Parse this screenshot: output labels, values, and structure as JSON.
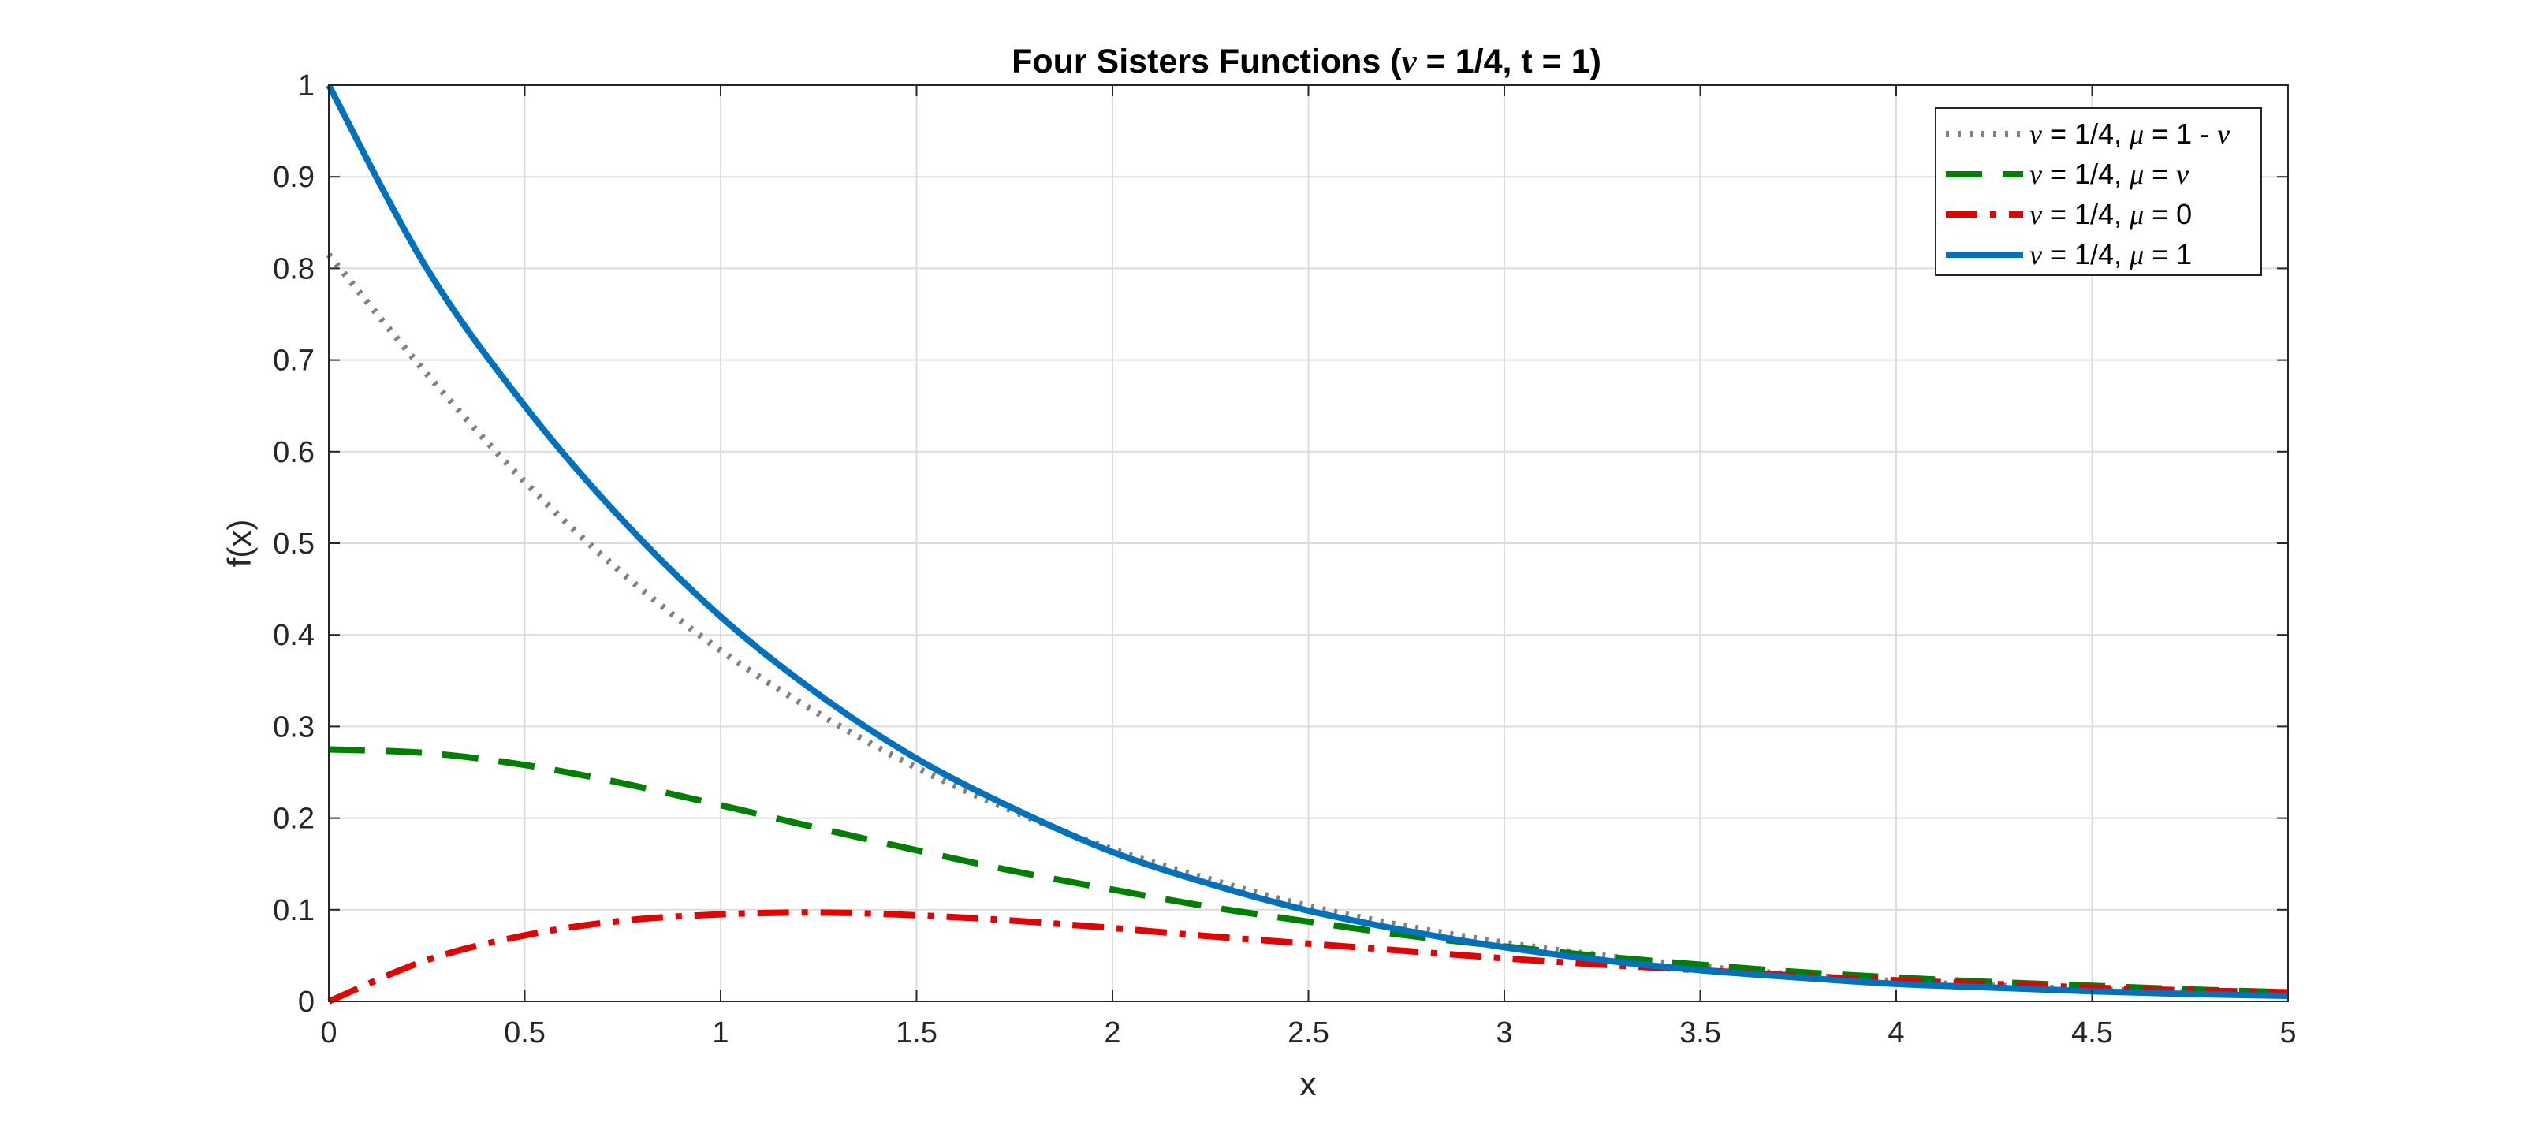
{
  "chart_data": {
    "type": "line",
    "title": {
      "prefix": "Four Sisters Functions (",
      "nu": "ν",
      "suffix": " = 1/4, t = 1)"
    },
    "xlabel": "x",
    "ylabel": "f(x)",
    "xlim": [
      0,
      5
    ],
    "ylim": [
      0,
      1
    ],
    "x_ticks": [
      "0",
      "0.5",
      "1",
      "1.5",
      "2",
      "2.5",
      "3",
      "3.5",
      "4",
      "4.5",
      "5"
    ],
    "y_ticks": [
      "0",
      "0.1",
      "0.2",
      "0.3",
      "0.4",
      "0.5",
      "0.6",
      "0.7",
      "0.8",
      "0.9",
      "1"
    ],
    "grid": true,
    "legend_position": "top-right",
    "x": [
      0,
      0.25,
      0.5,
      0.75,
      1,
      1.25,
      1.5,
      1.75,
      2,
      2.25,
      2.5,
      2.75,
      3,
      3.25,
      3.5,
      3.75,
      4,
      4.25,
      4.5,
      4.75,
      5
    ],
    "series": [
      {
        "legend": {
          "nu": "ν",
          "part1": " = 1/4, ",
          "mu": "μ",
          "part2": " = 1 - ",
          "nu2": "ν"
        },
        "color": "#808080",
        "style": "dotted",
        "values": [
          0.815,
          0.685,
          0.567,
          0.467,
          0.383,
          0.314,
          0.255,
          0.207,
          0.166,
          0.133,
          0.104,
          0.082,
          0.064,
          0.05,
          0.038,
          0.029,
          0.022,
          0.017,
          0.013,
          0.01,
          0.008
        ]
      },
      {
        "legend": {
          "nu": "ν",
          "part1": " = 1/4, ",
          "mu": "μ",
          "part2": " =  ",
          "nu2": "ν"
        },
        "color": "#008000",
        "style": "dashed",
        "values": [
          0.275,
          0.271,
          0.258,
          0.238,
          0.214,
          0.189,
          0.165,
          0.142,
          0.122,
          0.103,
          0.087,
          0.072,
          0.06,
          0.049,
          0.04,
          0.032,
          0.026,
          0.021,
          0.017,
          0.013,
          0.01
        ]
      },
      {
        "legend": {
          "nu": "ν",
          "part1": " = 1/4, ",
          "mu": "μ",
          "part2": " = 0",
          "nu2": ""
        },
        "color": "#e60000",
        "style": "dashdot",
        "values": [
          0.0,
          0.045,
          0.072,
          0.088,
          0.095,
          0.097,
          0.094,
          0.088,
          0.08,
          0.071,
          0.063,
          0.055,
          0.047,
          0.04,
          0.034,
          0.028,
          0.023,
          0.019,
          0.015,
          0.012,
          0.01
        ]
      },
      {
        "legend": {
          "nu": "ν",
          "part1": " = 1/4, ",
          "mu": "μ",
          "part2": " = 1",
          "nu2": ""
        },
        "color": "#0072bd",
        "style": "solid",
        "values": [
          1.0,
          0.8,
          0.65,
          0.525,
          0.42,
          0.335,
          0.265,
          0.21,
          0.163,
          0.128,
          0.099,
          0.077,
          0.059,
          0.045,
          0.034,
          0.026,
          0.019,
          0.015,
          0.011,
          0.008,
          0.006
        ]
      }
    ]
  }
}
